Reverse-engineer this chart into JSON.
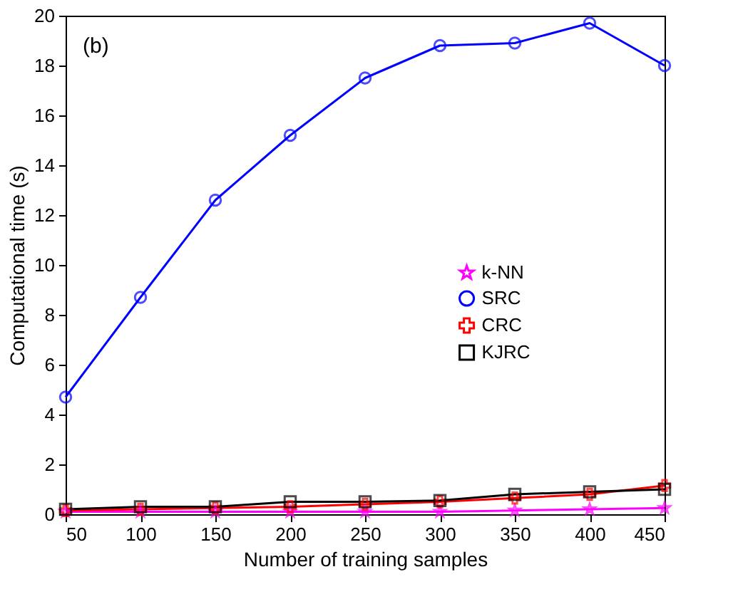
{
  "chart_data": {
    "type": "line",
    "xlabel": "Number of training samples",
    "ylabel": "Computational time (s)",
    "annotations": [
      "(b)"
    ],
    "x": [
      50,
      100,
      150,
      200,
      250,
      300,
      350,
      400,
      450
    ],
    "xlim": [
      50,
      450
    ],
    "xticks": [
      50,
      100,
      150,
      200,
      250,
      300,
      350,
      400,
      450
    ],
    "ylim": [
      0,
      20
    ],
    "yticks": [
      0,
      2,
      4,
      6,
      8,
      10,
      12,
      14,
      16,
      18,
      20
    ],
    "legend": "right",
    "grid": false,
    "series": [
      {
        "name": "k-NN",
        "color": "#ff00ff",
        "marker": "star",
        "values": [
          0.1,
          0.1,
          0.1,
          0.1,
          0.1,
          0.1,
          0.15,
          0.2,
          0.25
        ]
      },
      {
        "name": "SRC",
        "color": "#0000ff",
        "marker": "circle",
        "values": [
          4.7,
          8.7,
          12.6,
          15.2,
          17.5,
          18.8,
          18.9,
          19.7,
          18.0
        ]
      },
      {
        "name": "CRC",
        "color": "#ff0000",
        "marker": "cross",
        "values": [
          0.15,
          0.2,
          0.25,
          0.3,
          0.4,
          0.5,
          0.65,
          0.8,
          1.15
        ]
      },
      {
        "name": "KJRC",
        "color": "#000000",
        "marker": "square",
        "values": [
          0.2,
          0.3,
          0.3,
          0.5,
          0.5,
          0.55,
          0.8,
          0.9,
          1.0
        ]
      }
    ]
  }
}
